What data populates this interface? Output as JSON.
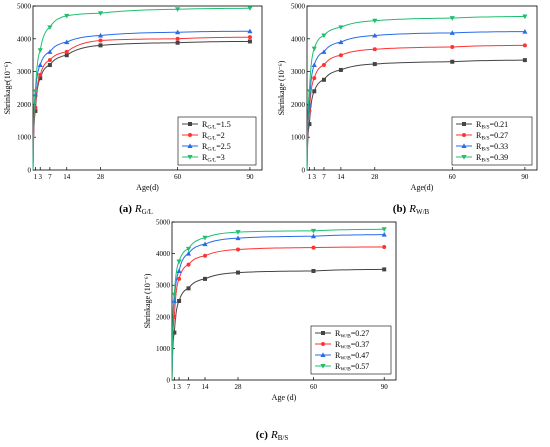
{
  "chart_data": [
    {
      "type": "line",
      "caption_letter": "(a)",
      "caption_symbol": "R",
      "caption_sub": "G/L",
      "xlabel": "Age(d)",
      "ylabel": "Shrinkage(10⁻⁶)",
      "x": [
        1,
        3,
        7,
        14,
        28,
        60,
        90
      ],
      "x_ticks": [
        "1",
        "3",
        "7",
        "14",
        "28",
        "60",
        "90"
      ],
      "ylim": [
        0,
        5000
      ],
      "y_ticks": [
        "0",
        "1000",
        "2000",
        "3000",
        "4000",
        "5000"
      ],
      "legend_position": "lower-right",
      "series": [
        {
          "legend_main": "R",
          "legend_sub": "G/L",
          "legend_value": "=1.5",
          "color": "#444444",
          "marker": "square",
          "values": [
            1800,
            2800,
            3200,
            3500,
            3800,
            3880,
            3920
          ]
        },
        {
          "legend_main": "R",
          "legend_sub": "G/L",
          "legend_value": "=2",
          "color": "#ff3333",
          "marker": "circle",
          "values": [
            1900,
            2900,
            3350,
            3600,
            3950,
            4000,
            4050
          ]
        },
        {
          "legend_main": "R",
          "legend_sub": "G/L",
          "legend_value": "=2.5",
          "color": "#2a6bea",
          "marker": "triangle-up",
          "values": [
            2300,
            3200,
            3600,
            3900,
            4100,
            4200,
            4230
          ]
        },
        {
          "legend_main": "R",
          "legend_sub": "G/L",
          "legend_value": "=3",
          "color": "#1fbf6f",
          "marker": "triangle-down",
          "values": [
            2400,
            3650,
            4350,
            4700,
            4780,
            4900,
            4930
          ]
        }
      ]
    },
    {
      "type": "line",
      "caption_letter": "(b)",
      "caption_symbol": "R",
      "caption_sub": "W/B",
      "xlabel": "Age(d)",
      "ylabel": "Shrinkage (10⁻⁶)",
      "x": [
        1,
        3,
        7,
        14,
        28,
        60,
        90
      ],
      "x_ticks": [
        "1",
        "3",
        "7",
        "14",
        "28",
        "60",
        "90"
      ],
      "ylim": [
        0,
        5000
      ],
      "y_ticks": [
        "0",
        "1000",
        "2000",
        "3000",
        "4000",
        "5000"
      ],
      "legend_position": "lower-right",
      "series": [
        {
          "legend_main": "R",
          "legend_sub": "B/S",
          "legend_value": "=0.21",
          "color": "#444444",
          "marker": "square",
          "values": [
            1400,
            2400,
            2750,
            3050,
            3230,
            3300,
            3350
          ]
        },
        {
          "legend_main": "R",
          "legend_sub": "B/S",
          "legend_value": "=0.27",
          "color": "#ff3333",
          "marker": "circle",
          "values": [
            1800,
            2800,
            3200,
            3500,
            3680,
            3750,
            3800
          ]
        },
        {
          "legend_main": "R",
          "legend_sub": "B/S",
          "legend_value": "=0.33",
          "color": "#2a6bea",
          "marker": "triangle-up",
          "values": [
            2000,
            3200,
            3600,
            3900,
            4100,
            4180,
            4220
          ]
        },
        {
          "legend_main": "R",
          "legend_sub": "B/S",
          "legend_value": "=0.39",
          "color": "#1fbf6f",
          "marker": "triangle-down",
          "values": [
            2400,
            3700,
            4100,
            4350,
            4550,
            4630,
            4680
          ]
        }
      ]
    },
    {
      "type": "line",
      "caption_letter": "(c)",
      "caption_symbol": "R",
      "caption_sub": "B/S",
      "xlabel": "Age (d)",
      "ylabel": "Shrinkage (10⁻⁶)",
      "x": [
        1,
        3,
        7,
        14,
        28,
        60,
        90
      ],
      "x_ticks": [
        "1",
        "3",
        "7",
        "14",
        "28",
        "60",
        "90"
      ],
      "ylim": [
        0,
        5000
      ],
      "y_ticks": [
        "0",
        "1000",
        "2000",
        "3000",
        "4000",
        "5000"
      ],
      "legend_position": "lower-right",
      "series": [
        {
          "legend_main": "R",
          "legend_sub": "W/B",
          "legend_value": "=0.27",
          "color": "#444444",
          "marker": "square",
          "values": [
            1500,
            2500,
            2900,
            3200,
            3400,
            3450,
            3500
          ]
        },
        {
          "legend_main": "R",
          "legend_sub": "W/B",
          "legend_value": "=0.37",
          "color": "#ff3333",
          "marker": "circle",
          "values": [
            2000,
            3200,
            3650,
            3930,
            4130,
            4190,
            4210
          ]
        },
        {
          "legend_main": "R",
          "legend_sub": "W/B",
          "legend_value": "=0.47",
          "color": "#2a6bea",
          "marker": "triangle-up",
          "values": [
            2500,
            3450,
            4000,
            4300,
            4490,
            4550,
            4600
          ]
        },
        {
          "legend_main": "R",
          "legend_sub": "W/B",
          "legend_value": "=0.57",
          "color": "#1fbf6f",
          "marker": "triangle-down",
          "values": [
            2700,
            3750,
            4150,
            4500,
            4680,
            4720,
            4770
          ]
        }
      ]
    }
  ]
}
